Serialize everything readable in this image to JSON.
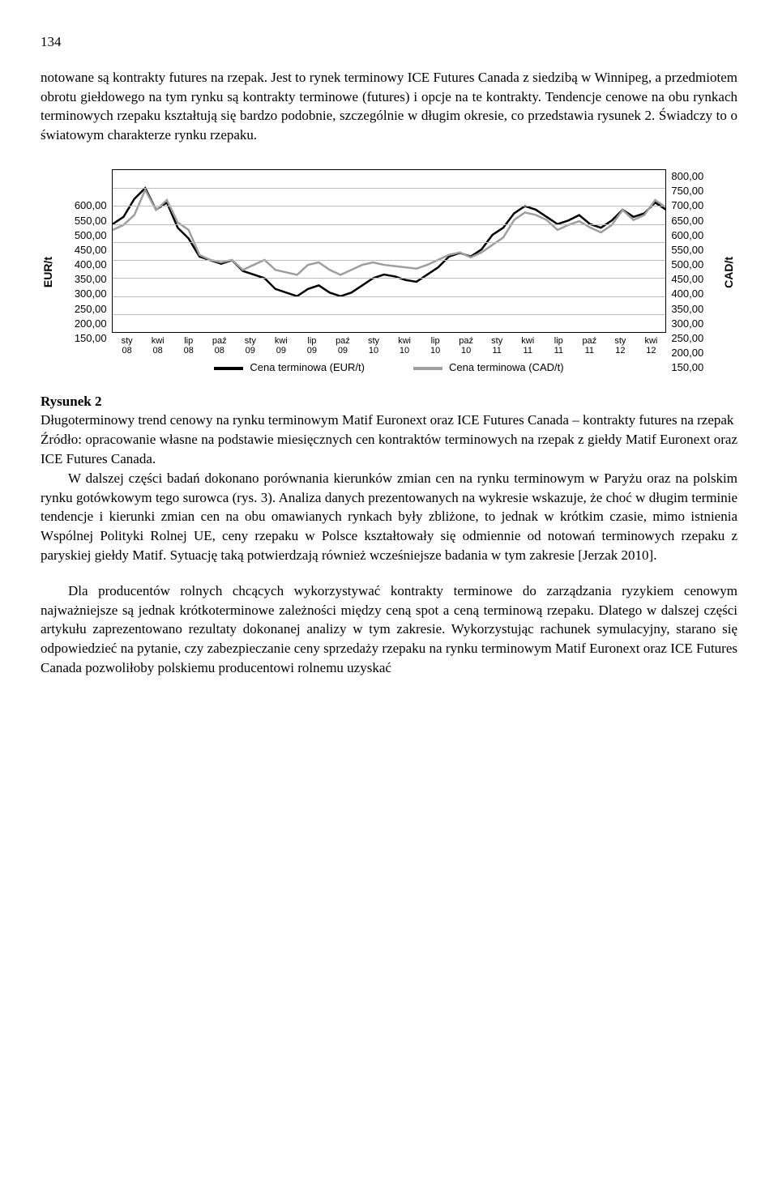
{
  "page_number": "134",
  "paragraphs": {
    "p1": "notowane są kontrakty futures na rzepak. Jest to rynek terminowy ICE Futures Canada z siedzibą w Winnipeg, a przedmiotem obrotu giełdowego na tym rynku są kontrakty terminowe (futures) i opcje na te kontrakty. Tendencje cenowe na obu rynkach terminowych rzepaku kształtują się bardzo podobnie, szczególnie w długim okresie, co przedstawia rysunek 2. Świadczy to o światowym charakterze rynku rzepaku.",
    "p2": "W dalszej części badań dokonano porównania kierunków zmian cen na rynku terminowym w Paryżu oraz na polskim rynku gotówkowym tego surowca (rys. 3). Analiza danych prezentowanych na wykresie wskazuje, że choć w długim terminie tendencje i kierunki zmian cen na obu omawianych rynkach były zbliżone, to jednak w krótkim czasie, mimo istnienia Wspólnej Polityki Rolnej UE, ceny rzepaku w Polsce kształtowały się odmiennie od notowań terminowych rzepaku z paryskiej giełdy Matif. Sytuację taką potwierdzają również wcześniejsze badania w tym zakresie [Jerzak 2010].",
    "p3": "Dla producentów rolnych chcących wykorzystywać kontrakty terminowe do zarządzania ryzykiem cenowym najważniejsze są jednak krótkoterminowe zależności między ceną spot a ceną terminową rzepaku. Dlatego w dalszej części artykułu zaprezentowano rezultaty dokonanej analizy w tym zakresie. Wykorzystując rachunek symulacyjny, starano się odpowiedzieć na pytanie, czy zabezpieczanie ceny sprzedaży rzepaku na rynku terminowym Matif Euronext oraz ICE Futures Canada pozwoliłoby polskiemu producentowi rolnemu uzyskać"
  },
  "chart": {
    "type": "line",
    "y_left_label": "EUR/t",
    "y_right_label": "CAD/t",
    "y_left_ticks": [
      "600,00",
      "550,00",
      "500,00",
      "450,00",
      "400,00",
      "350,00",
      "300,00",
      "250,00",
      "200,00",
      "150,00"
    ],
    "y_right_ticks": [
      "800,00",
      "750,00",
      "700,00",
      "650,00",
      "600,00",
      "550,00",
      "500,00",
      "450,00",
      "400,00",
      "350,00",
      "300,00",
      "250,00",
      "200,00",
      "150,00"
    ],
    "y_left_min": 150,
    "y_left_max": 600,
    "y_right_min": 150,
    "y_right_max": 800,
    "x_ticks": [
      {
        "m": "sty",
        "y": "08"
      },
      {
        "m": "kwi",
        "y": "08"
      },
      {
        "m": "lip",
        "y": "08"
      },
      {
        "m": "paź",
        "y": "08"
      },
      {
        "m": "sty",
        "y": "09"
      },
      {
        "m": "kwi",
        "y": "09"
      },
      {
        "m": "lip",
        "y": "09"
      },
      {
        "m": "paź",
        "y": "09"
      },
      {
        "m": "sty",
        "y": "10"
      },
      {
        "m": "kwi",
        "y": "10"
      },
      {
        "m": "lip",
        "y": "10"
      },
      {
        "m": "paź",
        "y": "10"
      },
      {
        "m": "sty",
        "y": "11"
      },
      {
        "m": "kwi",
        "y": "11"
      },
      {
        "m": "lip",
        "y": "11"
      },
      {
        "m": "paź",
        "y": "11"
      },
      {
        "m": "sty",
        "y": "12"
      },
      {
        "m": "kwi",
        "y": "12"
      }
    ],
    "series": [
      {
        "name": "Cena terminowa (EUR/t)",
        "color": "#000000",
        "width": 2.5,
        "axis": "left",
        "data": [
          450,
          470,
          520,
          550,
          490,
          510,
          440,
          410,
          360,
          350,
          340,
          350,
          320,
          310,
          300,
          270,
          260,
          250,
          270,
          280,
          260,
          250,
          260,
          280,
          300,
          310,
          305,
          295,
          290,
          310,
          330,
          360,
          370,
          360,
          380,
          420,
          440,
          480,
          500,
          490,
          470,
          450,
          460,
          475,
          450,
          440,
          460,
          490,
          470,
          480,
          510,
          490
        ]
      },
      {
        "name": "Cena terminowa (CAD/t)",
        "color": "#9e9e9e",
        "width": 2.5,
        "axis": "right",
        "data": [
          560,
          580,
          620,
          720,
          640,
          680,
          590,
          560,
          460,
          440,
          430,
          440,
          400,
          420,
          440,
          400,
          390,
          380,
          420,
          430,
          400,
          380,
          400,
          420,
          430,
          420,
          415,
          410,
          405,
          420,
          440,
          460,
          470,
          450,
          470,
          500,
          530,
          600,
          630,
          620,
          600,
          560,
          580,
          595,
          570,
          550,
          580,
          640,
          600,
          620,
          680,
          650
        ]
      }
    ],
    "grid_color": "#bbbbbb",
    "background": "#ffffff",
    "legend": [
      {
        "label": "Cena terminowa (EUR/t)",
        "color": "#000000"
      },
      {
        "label": "Cena terminowa (CAD/t)",
        "color": "#9e9e9e"
      }
    ]
  },
  "figure": {
    "title": "Rysunek 2",
    "caption": "Długoterminowy trend cenowy na rynku terminowym Matif Euronext oraz ICE Futures Canada – kontrakty futures na rzepak",
    "source": "Źródło: opracowanie własne na podstawie miesięcznych cen kontraktów terminowych na rzepak z giełdy Matif Euronext oraz ICE Futures Canada."
  }
}
